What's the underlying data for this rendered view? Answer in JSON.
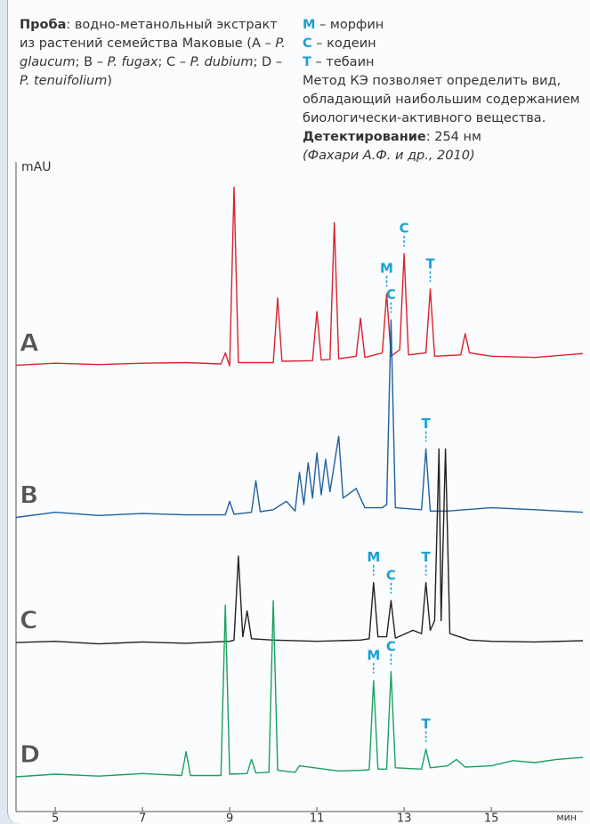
{
  "chart_data": {
    "type": "line",
    "sample_label": "Проба",
    "sample_text": [
      ": водно-метанольный экстракт из растений семейства Маковые (A – ",
      "P. glaucum",
      "; B – ",
      "P. fugax",
      "; C – ",
      "P. dubium",
      "; D – ",
      "P. tenuifolium",
      ")"
    ],
    "compounds": [
      {
        "code": "М",
        "text": "– морфин"
      },
      {
        "code": "С",
        "text": "– кодеин"
      },
      {
        "code": "Т",
        "text": "– тебаин"
      }
    ],
    "note": "Метод КЭ позволяет определить вид, обладающий наибольшим содержанием биологически-активного вещества.",
    "detection_label": "Детектирование",
    "detection_text": ": 254 нм",
    "source": "(Фахари А.Ф. и др., 2010)",
    "y_label": "mAU",
    "x_label": "мин",
    "xlim": [
      4.1,
      17.1
    ],
    "xticks": [
      5,
      7,
      9,
      11,
      13,
      15
    ],
    "ylim": [
      0,
      100
    ],
    "series": [
      {
        "name": "A",
        "color": "#d9232e",
        "x": [
          4.1,
          5,
          6,
          7,
          8,
          8.8,
          8.9,
          9.0,
          9.1,
          9.2,
          10.0,
          10.1,
          10.2,
          10.9,
          11.0,
          11.1,
          11.3,
          11.4,
          11.5,
          11.9,
          12.0,
          12.1,
          12.5,
          12.6,
          12.7,
          12.9,
          13.0,
          13.1,
          13.5,
          13.6,
          13.7,
          14.3,
          14.4,
          14.5,
          15,
          16,
          17.1
        ],
        "values": [
          69.6,
          69.9,
          69.7,
          69.9,
          70.0,
          69.8,
          71.5,
          69.5,
          97.2,
          70.0,
          70.0,
          80.0,
          70.2,
          70.3,
          77.9,
          70.4,
          70.5,
          91.7,
          70.6,
          71.0,
          76.9,
          70.8,
          71.5,
          80.7,
          71.0,
          72.0,
          86.9,
          71.2,
          71.5,
          81.4,
          71.0,
          71.2,
          74.5,
          71.5,
          71.0,
          70.8,
          71.4
        ],
        "annotations": [
          {
            "text": "М",
            "x": 12.6
          },
          {
            "text": "С",
            "x": 13.0
          },
          {
            "text": "Т",
            "x": 13.6
          }
        ]
      },
      {
        "name": "B",
        "color": "#1f5fa0",
        "x": [
          4.1,
          5,
          6,
          7,
          8,
          8.9,
          9.0,
          9.1,
          9.5,
          9.6,
          9.7,
          10.0,
          10.3,
          10.5,
          10.6,
          10.7,
          10.8,
          10.9,
          11.0,
          11.1,
          11.2,
          11.3,
          11.5,
          11.6,
          11.9,
          12.1,
          12.5,
          12.6,
          12.7,
          12.8,
          13.4,
          13.5,
          13.6,
          14.0,
          15,
          16,
          17.1
        ],
        "values": [
          46.0,
          46.8,
          46.3,
          46.6,
          46.4,
          46.4,
          48.5,
          46.5,
          46.8,
          51.7,
          46.9,
          47.2,
          48.5,
          47.0,
          53.0,
          48.0,
          54.5,
          49.0,
          56.0,
          49.5,
          55.0,
          50.0,
          58.6,
          49.0,
          50.5,
          47.5,
          47.5,
          48.0,
          76.6,
          47.5,
          47.2,
          56.6,
          47.0,
          47.0,
          47.5,
          47.2,
          46.8
        ],
        "annotations": [
          {
            "text": "С",
            "x": 12.7
          },
          {
            "text": "Т",
            "x": 13.5
          }
        ]
      },
      {
        "name": "C",
        "color": "#222222",
        "x": [
          4.1,
          5,
          6,
          7,
          8,
          9.0,
          9.1,
          9.2,
          9.3,
          9.4,
          9.5,
          10,
          11,
          12,
          12.2,
          12.3,
          12.4,
          12.6,
          12.7,
          12.8,
          13.2,
          13.4,
          13.5,
          13.6,
          13.7,
          13.8,
          13.85,
          13.95,
          14.05,
          14.5,
          15,
          16,
          17.1
        ],
        "values": [
          26.6,
          26.8,
          26.4,
          26.7,
          26.5,
          26.8,
          27.0,
          40.0,
          27.5,
          31.5,
          27.2,
          27.0,
          26.8,
          27.0,
          27.2,
          35.9,
          27.5,
          27.5,
          33.1,
          27.3,
          28.5,
          28.0,
          35.9,
          28.5,
          30.0,
          56.6,
          30.0,
          56.6,
          28.0,
          27.0,
          26.8,
          26.7,
          26.9
        ],
        "annotations": [
          {
            "text": "М",
            "x": 12.3
          },
          {
            "text": "С",
            "x": 12.7
          },
          {
            "text": "Т",
            "x": 13.5
          }
        ]
      },
      {
        "name": "D",
        "color": "#1aa060",
        "x": [
          4.1,
          5,
          6,
          7,
          7.9,
          8.0,
          8.1,
          8.8,
          8.9,
          9.0,
          9.4,
          9.5,
          9.6,
          9.9,
          10.0,
          10.1,
          10.5,
          10.6,
          11.5,
          12.0,
          12.2,
          12.3,
          12.4,
          12.6,
          12.7,
          12.8,
          13.4,
          13.5,
          13.6,
          14.0,
          14.2,
          14.4,
          15,
          15.5,
          16,
          16.5,
          17.1
        ],
        "values": [
          5.8,
          6.2,
          5.9,
          6.3,
          6.0,
          9.7,
          6.0,
          6.0,
          32.4,
          6.2,
          6.3,
          8.5,
          6.4,
          6.5,
          33.1,
          6.8,
          6.5,
          7.5,
          6.7,
          6.8,
          6.9,
          20.7,
          7.0,
          7.0,
          22.1,
          7.2,
          7.0,
          10.1,
          7.2,
          7.5,
          8.5,
          7.3,
          7.5,
          8.3,
          8.0,
          8.5,
          8.8
        ],
        "annotations": [
          {
            "text": "М",
            "x": 12.3
          },
          {
            "text": "С",
            "x": 12.7
          },
          {
            "text": "Т",
            "x": 13.5
          }
        ]
      }
    ]
  }
}
